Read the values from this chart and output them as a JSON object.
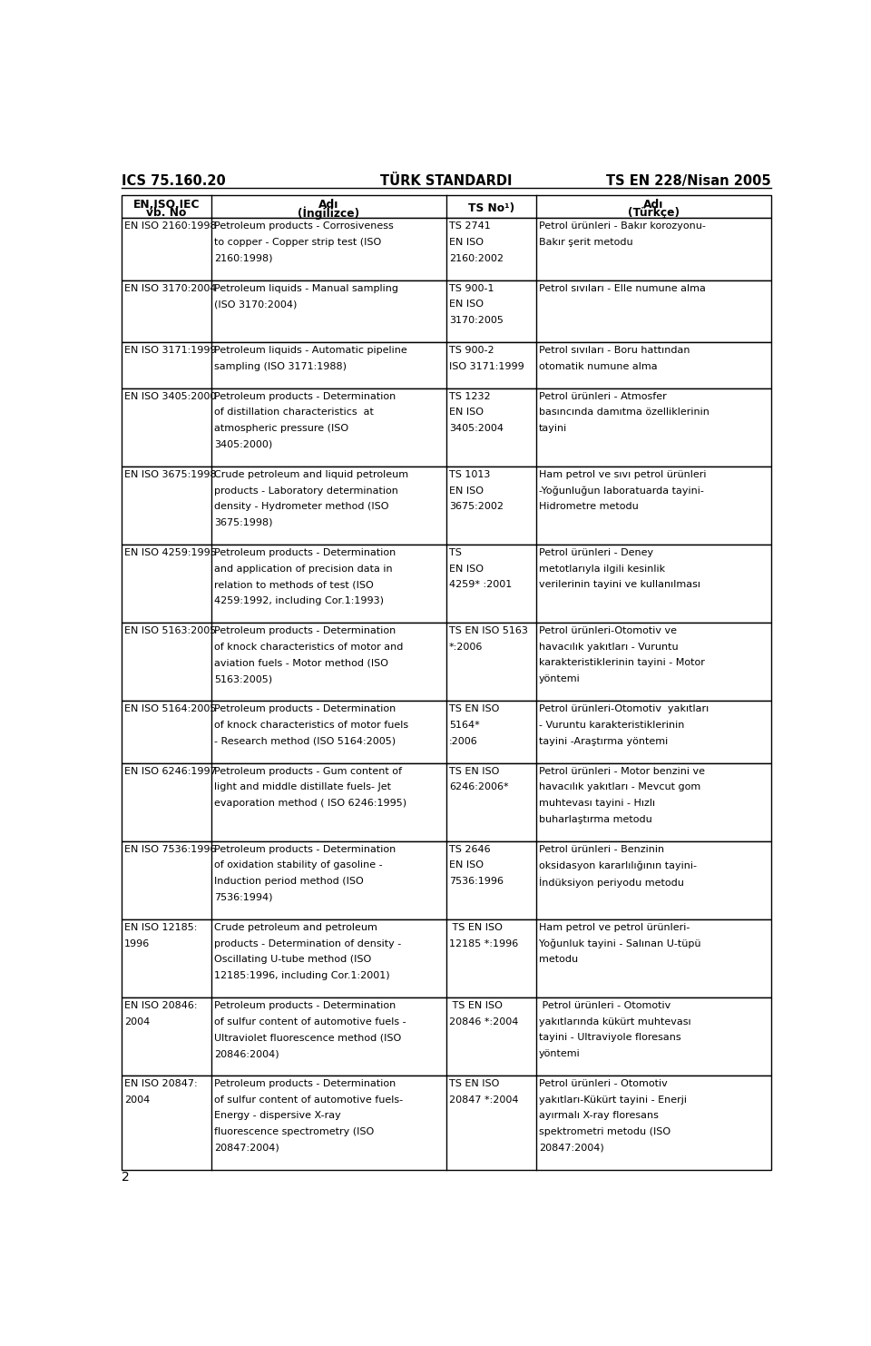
{
  "header_top": {
    "left": "ICS 75.160.20",
    "center": "TÜRK STANDARDI",
    "right": "TS EN 228/Nisan 2005"
  },
  "col_headers": [
    [
      "EN,ISO,IEC",
      "vb. No"
    ],
    [
      "Adı",
      "(İngilizce)"
    ],
    [
      "TS No¹)",
      ""
    ],
    [
      "Adı",
      "(Türkçe)"
    ]
  ],
  "rows": [
    {
      "col1": [
        "EN ISO 2160:1998"
      ],
      "col2": [
        "Petroleum products - Corrosiveness",
        "to copper - Copper strip test (ISO",
        "2160:1998)"
      ],
      "col3": [
        "TS 2741",
        "EN ISO",
        "2160:2002"
      ],
      "col4": [
        "Petrol ürünleri - Bakır korozyonu-",
        "Bakır şerit metodu"
      ]
    },
    {
      "col1": [
        "EN ISO 3170:2004"
      ],
      "col2": [
        "Petroleum liquids - Manual sampling",
        "(ISO 3170:2004)"
      ],
      "col3": [
        "TS 900-1",
        "EN ISO",
        "3170:2005"
      ],
      "col4": [
        "Petrol sıvıları - Elle numune alma"
      ]
    },
    {
      "col1": [
        "EN ISO 3171:1999"
      ],
      "col2": [
        "Petroleum liquids - Automatic pipeline",
        "sampling (ISO 3171:1988)"
      ],
      "col3": [
        "TS 900-2",
        "ISO 3171:1999"
      ],
      "col4": [
        "Petrol sıvıları - Boru hattından",
        "otomatik numune alma"
      ]
    },
    {
      "col1": [
        "EN ISO 3405:2000"
      ],
      "col2": [
        "Petroleum products - Determination",
        "of distillation characteristics  at",
        "atmospheric pressure (ISO",
        "3405:2000)"
      ],
      "col3": [
        "TS 1232",
        "EN ISO",
        "3405:2004"
      ],
      "col4": [
        "Petrol ürünleri - Atmosfer",
        "basıncında damıtma özelliklerinin",
        "tayini"
      ]
    },
    {
      "col1": [
        "EN ISO 3675:1998"
      ],
      "col2": [
        "Crude petroleum and liquid petroleum",
        "products - Laboratory determination",
        "density - Hydrometer method (ISO",
        "3675:1998)"
      ],
      "col3": [
        "TS 1013",
        "EN ISO",
        "3675:2002"
      ],
      "col4": [
        "Ham petrol ve sıvı petrol ürünleri",
        "-Yoğunluğun laboratuarda tayini-",
        "Hidrometre metodu"
      ]
    },
    {
      "col1": [
        "EN ISO 4259:1995"
      ],
      "col2": [
        "Petroleum products - Determination",
        "and application of precision data in",
        "relation to methods of test (ISO",
        "4259:1992, including Cor.1:1993)"
      ],
      "col3": [
        "TS",
        "EN ISO",
        "4259* :2001"
      ],
      "col4": [
        "Petrol ürünleri - Deney",
        "metotlarıyla ilgili kesinlik",
        "verilerinin tayini ve kullanılması"
      ]
    },
    {
      "col1": [
        "EN ISO 5163:2005"
      ],
      "col2": [
        "Petroleum products - Determination",
        "of knock characteristics of motor and",
        "aviation fuels - Motor method (ISO",
        "5163:2005)"
      ],
      "col3": [
        "TS EN ISO 5163",
        "*:2006"
      ],
      "col4": [
        "Petrol ürünleri-Otomotiv ve",
        "havacılık yakıtları - Vuruntu",
        "karakteristiklerinin tayini - Motor",
        "yöntemi"
      ]
    },
    {
      "col1": [
        "EN ISO 5164:2005"
      ],
      "col2": [
        "Petroleum products - Determination",
        "of knock characteristics of motor fuels",
        "- Research method (ISO 5164:2005)"
      ],
      "col3": [
        "TS EN ISO",
        "5164*",
        ":2006"
      ],
      "col4": [
        "Petrol ürünleri-Otomotiv  yakıtları",
        "- Vuruntu karakteristiklerinin",
        "tayini -Araştırma yöntemi"
      ]
    },
    {
      "col1": [
        "EN ISO 6246:1997"
      ],
      "col2": [
        "Petroleum products - Gum content of",
        "light and middle distillate fuels- Jet",
        "evaporation method ( ISO 6246:1995)"
      ],
      "col3": [
        "TS EN ISO",
        "6246:2006*"
      ],
      "col4": [
        "Petrol ürünleri - Motor benzini ve",
        "havacılık yakıtları - Mevcut gom",
        "muhtevası tayini - Hızlı",
        "buharlaştırma metodu"
      ]
    },
    {
      "col1": [
        "EN ISO 7536:1996"
      ],
      "col2": [
        "Petroleum products - Determination",
        "of oxidation stability of gasoline -",
        "Induction period method (ISO",
        "7536:1994)"
      ],
      "col3": [
        "TS 2646",
        "EN ISO",
        "7536:1996"
      ],
      "col4": [
        "Petrol ürünleri - Benzinin",
        "oksidasyon kararlılığının tayini-",
        "İndüksiyon periyodu metodu"
      ]
    },
    {
      "col1": [
        "EN ISO 12185:",
        "1996"
      ],
      "col2": [
        "Crude petroleum and petroleum",
        "products - Determination of density -",
        "Oscillating U-tube method (ISO",
        "12185:1996, including Cor.1:2001)"
      ],
      "col3": [
        " TS EN ISO",
        "12185 *:1996"
      ],
      "col4": [
        "Ham petrol ve petrol ürünleri-",
        "Yoğunluk tayini - Salınan U-tüpü",
        "metodu"
      ]
    },
    {
      "col1": [
        "EN ISO 20846:",
        "2004"
      ],
      "col2": [
        "Petroleum products - Determination",
        "of sulfur content of automotive fuels -",
        "Ultraviolet fluorescence method (ISO",
        "20846:2004)"
      ],
      "col3": [
        " TS EN ISO",
        "20846 *:2004"
      ],
      "col4": [
        " Petrol ürünleri - Otomotiv",
        "yakıtlarında kükürt muhtevası",
        "tayini - Ultraviyole floresans",
        "yöntemi"
      ]
    },
    {
      "col1": [
        "EN ISO 20847:",
        "2004"
      ],
      "col2": [
        "Petroleum products - Determination",
        "of sulfur content of automotive fuels-",
        "Energy - dispersive X-ray",
        "fluorescence spectrometry (ISO",
        "20847:2004)"
      ],
      "col3": [
        "TS EN ISO",
        "20847 *:2004"
      ],
      "col4": [
        "Petrol ürünleri - Otomotiv",
        "yakıtları-Kükürt tayini - Enerji",
        "ayırmalı X-ray floresans",
        "spektrometri metodu (ISO",
        "20847:2004)"
      ]
    }
  ],
  "footer": "2",
  "bg_color": "#ffffff",
  "border_color": "#000000",
  "text_color": "#000000"
}
